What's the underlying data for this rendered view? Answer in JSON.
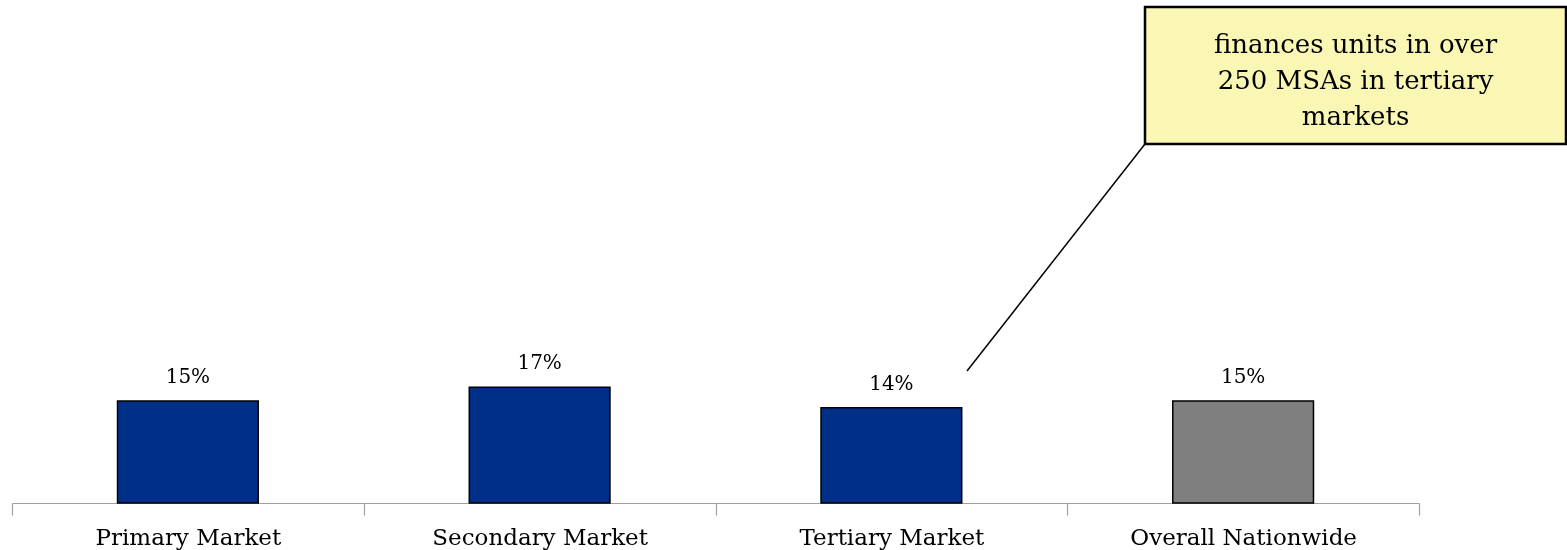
{
  "chart_data": {
    "type": "bar",
    "categories": [
      "Primary Market",
      "Secondary Market",
      "Tertiary Market",
      "Overall Nationwide"
    ],
    "values": [
      15,
      17,
      14,
      15
    ],
    "colors": [
      "#002f87",
      "#002f87",
      "#002f87",
      "#7f7f7f"
    ],
    "value_labels": [
      "15%",
      "17%",
      "14%",
      "15%"
    ],
    "annotations": [
      "finances units in over 250 MSAs in tertiary markets"
    ]
  }
}
